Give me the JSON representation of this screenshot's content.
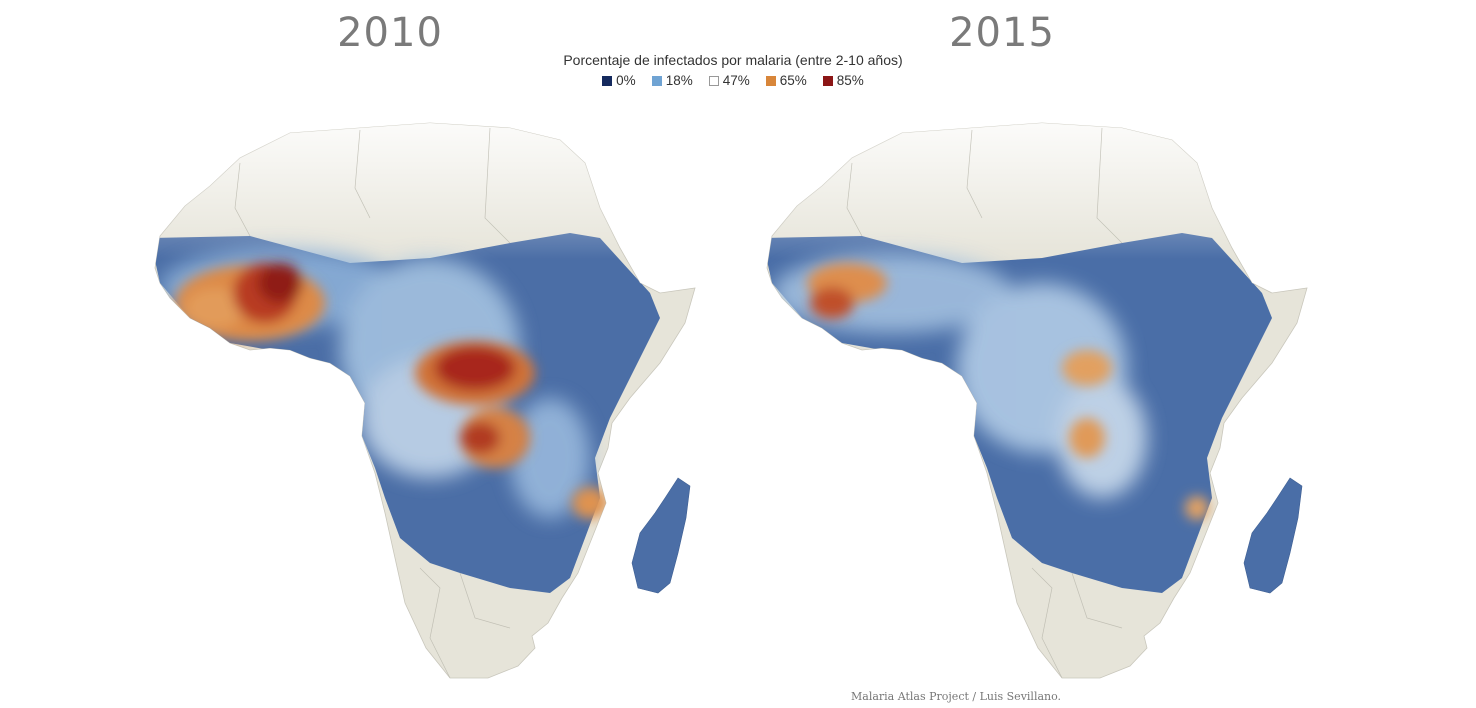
{
  "years": {
    "left": "2010",
    "right": "2015"
  },
  "legend": {
    "title": "Porcentaje de infectados por malaria (entre 2-10 años)",
    "items": [
      {
        "label": "0%",
        "color": "#152a5e"
      },
      {
        "label": "18%",
        "color": "#6fa3d3"
      },
      {
        "label": "47%",
        "color": "#ffffff"
      },
      {
        "label": "65%",
        "color": "#d8863a"
      },
      {
        "label": "85%",
        "color": "#8c1616"
      }
    ]
  },
  "source": "Malaria Atlas Project / Luis Sevillano."
}
